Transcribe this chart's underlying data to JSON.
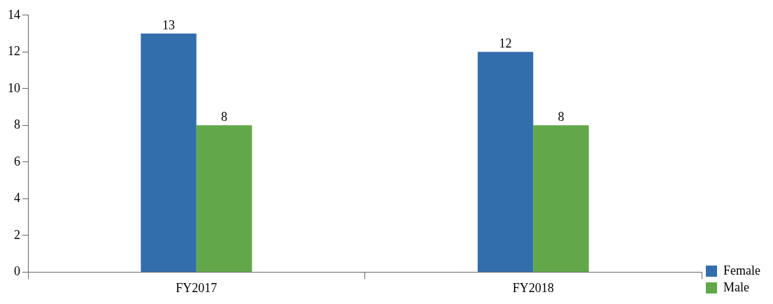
{
  "chart_data": {
    "type": "bar",
    "categories": [
      "FY2017",
      "FY2018"
    ],
    "series": [
      {
        "name": "Female",
        "color": "#336eac",
        "values": [
          13,
          12
        ]
      },
      {
        "name": "Male",
        "color": "#62a84a",
        "values": [
          8,
          8
        ]
      }
    ],
    "ylim": [
      0,
      14
    ],
    "yticks": [
      0,
      2,
      4,
      6,
      8,
      10,
      12,
      14
    ],
    "grid": false,
    "legend": "right",
    "data_labels": true
  }
}
